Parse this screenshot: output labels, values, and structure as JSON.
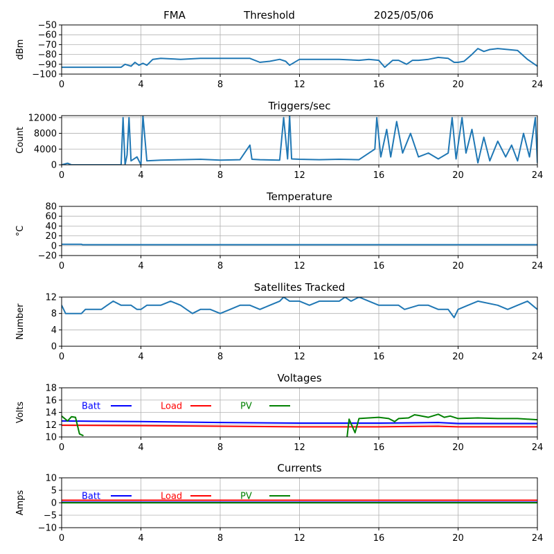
{
  "header": {
    "left": "FMA",
    "middle": "Threshold",
    "right": "2025/05/06"
  },
  "x_axis": {
    "range": [
      0,
      24
    ],
    "ticks": [
      0,
      4,
      8,
      12,
      16,
      20,
      24
    ]
  },
  "chart_data": [
    {
      "id": "threshold",
      "type": "line",
      "title": "",
      "ylabel": "dBm",
      "ylim": [
        -100,
        -50
      ],
      "yticks": [
        -100,
        -90,
        -80,
        -70,
        -60,
        -50
      ],
      "grid": true,
      "series": [
        {
          "color": "#1f77b4",
          "points": [
            [
              0,
              -93
            ],
            [
              1,
              -93
            ],
            [
              2,
              -93
            ],
            [
              3,
              -93
            ],
            [
              3.2,
              -90
            ],
            [
              3.5,
              -92
            ],
            [
              3.7,
              -88
            ],
            [
              3.9,
              -91
            ],
            [
              4.1,
              -89
            ],
            [
              4.3,
              -91
            ],
            [
              4.6,
              -85
            ],
            [
              5,
              -84
            ],
            [
              6,
              -85
            ],
            [
              7,
              -84
            ],
            [
              8,
              -84
            ],
            [
              9,
              -84
            ],
            [
              9.5,
              -84
            ],
            [
              10,
              -88
            ],
            [
              10.5,
              -87
            ],
            [
              11,
              -85
            ],
            [
              11.3,
              -87
            ],
            [
              11.5,
              -91
            ],
            [
              12,
              -85
            ],
            [
              13,
              -85
            ],
            [
              14,
              -85
            ],
            [
              15,
              -86
            ],
            [
              15.5,
              -85
            ],
            [
              16,
              -86
            ],
            [
              16.3,
              -93
            ],
            [
              16.7,
              -86
            ],
            [
              17,
              -86
            ],
            [
              17.4,
              -90
            ],
            [
              17.7,
              -86
            ],
            [
              18,
              -86
            ],
            [
              18.5,
              -85
            ],
            [
              19,
              -83
            ],
            [
              19.5,
              -84
            ],
            [
              19.8,
              -88
            ],
            [
              20,
              -88
            ],
            [
              20.3,
              -87
            ],
            [
              20.7,
              -80
            ],
            [
              21,
              -74
            ],
            [
              21.3,
              -77
            ],
            [
              21.6,
              -75
            ],
            [
              22,
              -74
            ],
            [
              22.5,
              -75
            ],
            [
              23,
              -76
            ],
            [
              23.5,
              -85
            ],
            [
              24,
              -92
            ]
          ]
        }
      ]
    },
    {
      "id": "triggers",
      "type": "line",
      "title": "Triggers/sec",
      "ylabel": "Count",
      "ylim": [
        0,
        12500
      ],
      "yticks": [
        0,
        4000,
        8000,
        12000
      ],
      "grid": true,
      "series": [
        {
          "color": "#1f77b4",
          "points": [
            [
              0,
              0
            ],
            [
              0.3,
              400
            ],
            [
              0.5,
              0
            ],
            [
              1,
              0
            ],
            [
              2,
              0
            ],
            [
              3,
              0
            ],
            [
              3.1,
              12000
            ],
            [
              3.2,
              0
            ],
            [
              3.3,
              2500
            ],
            [
              3.4,
              12000
            ],
            [
              3.5,
              1000
            ],
            [
              3.8,
              2000
            ],
            [
              4,
              0
            ],
            [
              4.1,
              12500
            ],
            [
              4.3,
              1000
            ],
            [
              5,
              1200
            ],
            [
              6,
              1300
            ],
            [
              7,
              1400
            ],
            [
              8,
              1200
            ],
            [
              9,
              1300
            ],
            [
              9.5,
              5000
            ],
            [
              9.6,
              1400
            ],
            [
              10,
              1300
            ],
            [
              11,
              1200
            ],
            [
              11.2,
              12000
            ],
            [
              11.4,
              1500
            ],
            [
              11.5,
              12500
            ],
            [
              11.6,
              1500
            ],
            [
              12,
              1400
            ],
            [
              13,
              1300
            ],
            [
              14,
              1400
            ],
            [
              15,
              1300
            ],
            [
              15.8,
              4000
            ],
            [
              15.9,
              12000
            ],
            [
              16.1,
              2000
            ],
            [
              16.4,
              9000
            ],
            [
              16.6,
              2000
            ],
            [
              16.9,
              11000
            ],
            [
              17.2,
              3000
            ],
            [
              17.6,
              8000
            ],
            [
              18,
              2000
            ],
            [
              18.5,
              3000
            ],
            [
              19,
              1500
            ],
            [
              19.5,
              3000
            ],
            [
              19.7,
              12000
            ],
            [
              19.9,
              1500
            ],
            [
              20.2,
              12000
            ],
            [
              20.4,
              3000
            ],
            [
              20.7,
              9000
            ],
            [
              21,
              500
            ],
            [
              21.3,
              7000
            ],
            [
              21.6,
              1000
            ],
            [
              22,
              6000
            ],
            [
              22.4,
              2000
            ],
            [
              22.7,
              5000
            ],
            [
              23,
              1000
            ],
            [
              23.3,
              8000
            ],
            [
              23.6,
              2000
            ],
            [
              23.9,
              12000
            ],
            [
              24,
              500
            ]
          ]
        }
      ]
    },
    {
      "id": "temperature",
      "type": "line",
      "title": "Temperature",
      "ylabel": "°C",
      "ylim": [
        -20,
        80
      ],
      "yticks": [
        -20,
        0,
        20,
        40,
        60,
        80
      ],
      "grid": true,
      "series": [
        {
          "color": "#1f77b4",
          "points": [
            [
              0,
              3
            ],
            [
              1,
              3
            ],
            [
              1.05,
              2
            ],
            [
              24,
              2
            ]
          ]
        }
      ]
    },
    {
      "id": "satellites",
      "type": "line",
      "title": "Satellites Tracked",
      "ylabel": "Number",
      "ylim": [
        0,
        12
      ],
      "yticks": [
        0,
        4,
        8,
        12
      ],
      "grid": true,
      "series": [
        {
          "color": "#1f77b4",
          "points": [
            [
              0,
              10
            ],
            [
              0.2,
              8
            ],
            [
              1,
              8
            ],
            [
              1.2,
              9
            ],
            [
              2,
              9
            ],
            [
              2.3,
              10
            ],
            [
              2.6,
              11
            ],
            [
              3,
              10
            ],
            [
              3.5,
              10
            ],
            [
              3.8,
              9
            ],
            [
              4,
              9
            ],
            [
              4.3,
              10
            ],
            [
              5,
              10
            ],
            [
              5.5,
              11
            ],
            [
              6,
              10
            ],
            [
              6.3,
              9
            ],
            [
              6.6,
              8
            ],
            [
              7,
              9
            ],
            [
              7.5,
              9
            ],
            [
              8,
              8
            ],
            [
              8.5,
              9
            ],
            [
              9,
              10
            ],
            [
              9.5,
              10
            ],
            [
              10,
              9
            ],
            [
              10.5,
              10
            ],
            [
              11,
              11
            ],
            [
              11.2,
              12
            ],
            [
              11.5,
              11
            ],
            [
              12,
              11
            ],
            [
              12.5,
              10
            ],
            [
              13,
              11
            ],
            [
              14,
              11
            ],
            [
              14.3,
              12
            ],
            [
              14.6,
              11
            ],
            [
              15,
              12
            ],
            [
              15.5,
              11
            ],
            [
              16,
              10
            ],
            [
              17,
              10
            ],
            [
              17.3,
              9
            ],
            [
              18,
              10
            ],
            [
              18.5,
              10
            ],
            [
              19,
              9
            ],
            [
              19.5,
              9
            ],
            [
              19.8,
              7
            ],
            [
              20,
              9
            ],
            [
              20.5,
              10
            ],
            [
              21,
              11
            ],
            [
              22,
              10
            ],
            [
              22.5,
              9
            ],
            [
              23,
              10
            ],
            [
              23.5,
              11
            ],
            [
              24,
              9
            ]
          ]
        }
      ]
    },
    {
      "id": "voltages",
      "type": "line",
      "title": "Voltages",
      "ylabel": "Volts",
      "ylim": [
        10,
        18
      ],
      "yticks": [
        10,
        12,
        14,
        16,
        18
      ],
      "grid": true,
      "legend": [
        {
          "label": "Batt",
          "color": "#0000ff"
        },
        {
          "label": "Load",
          "color": "#ff0000"
        },
        {
          "label": "PV",
          "color": "#008000"
        }
      ],
      "series": [
        {
          "name": "Batt",
          "color": "#0000ff",
          "points": [
            [
              0,
              12.6
            ],
            [
              4,
              12.5
            ],
            [
              8,
              12.35
            ],
            [
              12,
              12.25
            ],
            [
              16,
              12.25
            ],
            [
              17.5,
              12.3
            ],
            [
              19,
              12.35
            ],
            [
              20,
              12.2
            ],
            [
              24,
              12.2
            ]
          ]
        },
        {
          "name": "Load",
          "color": "#ff0000",
          "points": [
            [
              0,
              11.9
            ],
            [
              4,
              11.85
            ],
            [
              8,
              11.75
            ],
            [
              12,
              11.65
            ],
            [
              16,
              11.65
            ],
            [
              17.5,
              11.7
            ],
            [
              19,
              11.75
            ],
            [
              20,
              11.65
            ],
            [
              24,
              11.65
            ]
          ]
        },
        {
          "name": "PV",
          "color": "#008000",
          "segments": [
            [
              [
                0,
                13.4
              ],
              [
                0.3,
                12.6
              ],
              [
                0.5,
                13.3
              ],
              [
                0.7,
                13.2
              ],
              [
                0.9,
                10.5
              ],
              [
                1.1,
                10.2
              ]
            ],
            [
              [
                14.4,
                10
              ],
              [
                14.5,
                12.9
              ],
              [
                14.8,
                10.7
              ],
              [
                15,
                13
              ],
              [
                15.5,
                13.1
              ],
              [
                16,
                13.2
              ],
              [
                16.5,
                13
              ],
              [
                16.8,
                12.5
              ],
              [
                17,
                13
              ],
              [
                17.5,
                13.1
              ],
              [
                17.8,
                13.6
              ],
              [
                18,
                13.5
              ],
              [
                18.5,
                13.2
              ],
              [
                19,
                13.7
              ],
              [
                19.3,
                13.2
              ],
              [
                19.6,
                13.4
              ],
              [
                20,
                13
              ],
              [
                21,
                13.1
              ],
              [
                22,
                13
              ],
              [
                23,
                13
              ],
              [
                24,
                12.8
              ]
            ]
          ]
        }
      ]
    },
    {
      "id": "currents",
      "type": "line",
      "title": "Currents",
      "ylabel": "Amps",
      "ylim": [
        -10,
        10
      ],
      "yticks": [
        -10,
        -5,
        0,
        5,
        10
      ],
      "grid": true,
      "legend": [
        {
          "label": "Batt",
          "color": "#0000ff"
        },
        {
          "label": "Load",
          "color": "#ff0000"
        },
        {
          "label": "PV",
          "color": "#008000"
        }
      ],
      "series": [
        {
          "name": "Batt",
          "color": "#0000ff",
          "points": [
            [
              0,
              0.2
            ],
            [
              24,
              0.2
            ]
          ]
        },
        {
          "name": "Load",
          "color": "#ff0000",
          "points": [
            [
              0,
              1
            ],
            [
              24,
              1
            ]
          ]
        },
        {
          "name": "PV",
          "color": "#008000",
          "points": [
            [
              0,
              0
            ],
            [
              24,
              0
            ]
          ]
        }
      ]
    }
  ]
}
